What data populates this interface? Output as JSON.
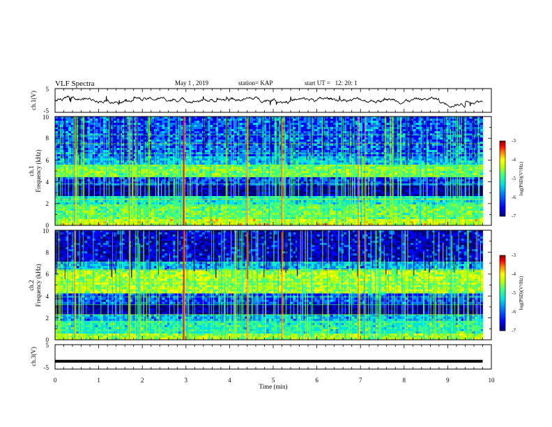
{
  "header": {
    "title": "VLF Spectra",
    "date": "May 1 , 2019",
    "station": "station= KAP",
    "start": "start UT =   12: 20: 1"
  },
  "colors": {
    "trace": "#000000",
    "frame": "#000000",
    "colormap": [
      "#00007f",
      "#0000ff",
      "#0080ff",
      "#00e0e0",
      "#40ff80",
      "#c0ff00",
      "#ffff00",
      "#ff8000",
      "#ff0000",
      "#800000"
    ]
  },
  "chart_data": [
    {
      "type": "line",
      "name": "ch1-voltage",
      "ylabel": "ch.1(V)",
      "ylim": [
        -5,
        5
      ],
      "yticks": [
        "5",
        "-5"
      ],
      "xlim": [
        0,
        10
      ],
      "x_end": 9.8,
      "mean_level": 0.3,
      "amplitude": 1.5
    },
    {
      "type": "heatmap",
      "name": "ch1-spectrogram",
      "panel_label": "ch.1",
      "ylabel": "Frequency (kHz)",
      "ylim": [
        0,
        10
      ],
      "yticks": [
        "0",
        "2",
        "4",
        "6",
        "8",
        "10"
      ],
      "xlim": [
        0,
        10
      ],
      "x_end": 9.8,
      "colorbar": {
        "label": "log(PSD)(V²/Hz)",
        "range": [
          -7,
          -3
        ],
        "ticks": [
          "-3",
          "-4",
          "-5",
          "-6",
          "-7"
        ]
      },
      "strong_burst_times_min": [
        2.95,
        0.45,
        7.1,
        6.95,
        4.4,
        5.2,
        1.7
      ]
    },
    {
      "type": "heatmap",
      "name": "ch2-spectrogram",
      "panel_label": "ch.2",
      "ylabel": "Frequency (kHz)",
      "ylim": [
        0,
        10
      ],
      "yticks": [
        "0",
        "2",
        "4",
        "6",
        "8",
        "10"
      ],
      "xlim": [
        0,
        10
      ],
      "x_end": 9.8,
      "colorbar": {
        "label": "log(PSD)(V²/Hz)",
        "range": [
          -7,
          -3
        ],
        "ticks": [
          "-3",
          "-4",
          "-5",
          "-6",
          "-7"
        ]
      },
      "strong_burst_times_min": [
        2.95,
        0.45,
        7.1,
        6.95,
        4.4,
        5.2,
        1.7
      ]
    },
    {
      "type": "line",
      "name": "ch3-voltage",
      "ylabel": "ch.3(V)",
      "ylim": [
        -5,
        5
      ],
      "yticks": [
        "5",
        "-5"
      ],
      "xlim": [
        0,
        10
      ],
      "x_end": 9.8,
      "level": -1.8
    }
  ],
  "xaxis": {
    "label": "Time (min)",
    "ticks": [
      "0",
      "1",
      "2",
      "3",
      "4",
      "5",
      "6",
      "7",
      "8",
      "9",
      "10"
    ]
  }
}
